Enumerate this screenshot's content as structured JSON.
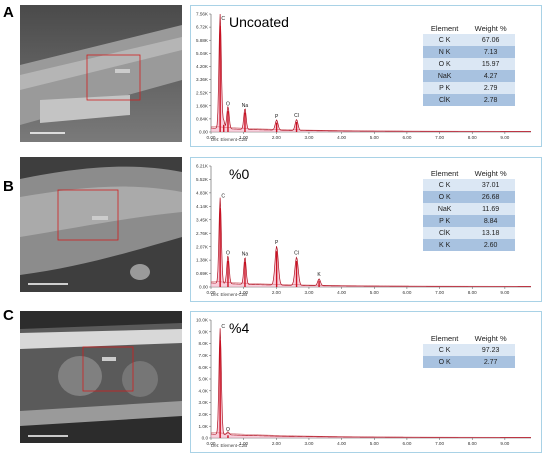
{
  "panels": [
    {
      "letter": "A",
      "label": "Uncoated",
      "table": {
        "headers": [
          "Element",
          "Weight %"
        ],
        "rows": [
          [
            "C K",
            "67.06"
          ],
          [
            "N K",
            "7.13"
          ],
          [
            "O K",
            "15.97"
          ],
          [
            "NaK",
            "4.27"
          ],
          [
            "P K",
            "2.79"
          ],
          [
            "ClK",
            "2.78"
          ]
        ]
      },
      "detector": "Det: Element-C2B"
    },
    {
      "letter": "B",
      "label": "%0",
      "table": {
        "headers": [
          "Element",
          "Weight %"
        ],
        "rows": [
          [
            "C K",
            "37.01"
          ],
          [
            "O K",
            "26.68"
          ],
          [
            "NaK",
            "11.69"
          ],
          [
            "P K",
            "8.84"
          ],
          [
            "ClK",
            "13.18"
          ],
          [
            "K K",
            "2.60"
          ]
        ]
      },
      "detector": "Det: Element-C2B"
    },
    {
      "letter": "C",
      "label": "%4",
      "table": {
        "headers": [
          "Element",
          "Weight %"
        ],
        "rows": [
          [
            "C K",
            "97.23"
          ],
          [
            "O K",
            "2.77"
          ]
        ]
      },
      "detector": "Det: Element-C2B"
    }
  ],
  "chart_data": [
    {
      "type": "line",
      "xlim": [
        0,
        9.8
      ],
      "xticks": [
        "0.00",
        "1.00",
        "2.00",
        "3.00",
        "4.00",
        "5.00",
        "6.00",
        "7.00",
        "8.00",
        "9.00"
      ],
      "ylim": [
        0,
        7560
      ],
      "yticks": [
        "0.00",
        "0.84K",
        "1.68K",
        "2.52K",
        "3.36K",
        "4.20K",
        "5.04K",
        "5.88K",
        "6.72K",
        "7.56K"
      ],
      "peaks": [
        {
          "label": "C",
          "x": 0.28,
          "y": 7400,
          "w": 0.05
        },
        {
          "label": "N",
          "x": 0.39,
          "y": 500,
          "w": 0.04
        },
        {
          "label": "O",
          "x": 0.52,
          "y": 1450,
          "w": 0.05
        },
        {
          "label": "Na",
          "x": 1.04,
          "y": 1350,
          "w": 0.05
        },
        {
          "label": "P",
          "x": 2.01,
          "y": 650,
          "w": 0.06
        },
        {
          "label": "Cl",
          "x": 2.62,
          "y": 700,
          "w": 0.06
        }
      ],
      "peak_labels": [
        "C",
        "O",
        "Na",
        "P",
        "Cl"
      ]
    },
    {
      "type": "line",
      "xlim": [
        0,
        9.8
      ],
      "xticks": [
        "0.00",
        "1.00",
        "2.00",
        "3.00",
        "4.00",
        "5.00",
        "6.00",
        "7.00",
        "8.00",
        "9.00"
      ],
      "ylim": [
        0,
        6210
      ],
      "yticks": [
        "0.00",
        "0.69K",
        "1.38K",
        "2.07K",
        "2.76K",
        "3.45K",
        "4.14K",
        "4.83K",
        "5.52K",
        "6.21K"
      ],
      "peaks": [
        {
          "label": "C",
          "x": 0.28,
          "y": 4400,
          "w": 0.05
        },
        {
          "label": "O",
          "x": 0.52,
          "y": 1450,
          "w": 0.05
        },
        {
          "label": "Na",
          "x": 1.04,
          "y": 1400,
          "w": 0.05
        },
        {
          "label": "P",
          "x": 2.01,
          "y": 2000,
          "w": 0.07
        },
        {
          "label": "Cl",
          "x": 2.62,
          "y": 1450,
          "w": 0.07
        },
        {
          "label": "K",
          "x": 3.31,
          "y": 350,
          "w": 0.06
        }
      ],
      "peak_labels": [
        "C",
        "O",
        "Na",
        "P",
        "Cl",
        "K"
      ]
    },
    {
      "type": "line",
      "xlim": [
        0,
        9.8
      ],
      "xticks": [
        "0.00",
        "1.00",
        "2.00",
        "3.00",
        "4.00",
        "5.00",
        "6.00",
        "7.00",
        "8.00",
        "9.00"
      ],
      "ylim": [
        0,
        10000
      ],
      "yticks": [
        "0.0",
        "1.0K",
        "2.0K",
        "3.0K",
        "4.0K",
        "5.0K",
        "6.0K",
        "7.0K",
        "8.0K",
        "9.0K",
        "10.0K"
      ],
      "peaks": [
        {
          "label": "C",
          "x": 0.28,
          "y": 9000,
          "w": 0.05
        },
        {
          "label": "O",
          "x": 0.52,
          "y": 250,
          "w": 0.05
        }
      ],
      "peak_labels": [
        "C",
        "O"
      ]
    }
  ]
}
